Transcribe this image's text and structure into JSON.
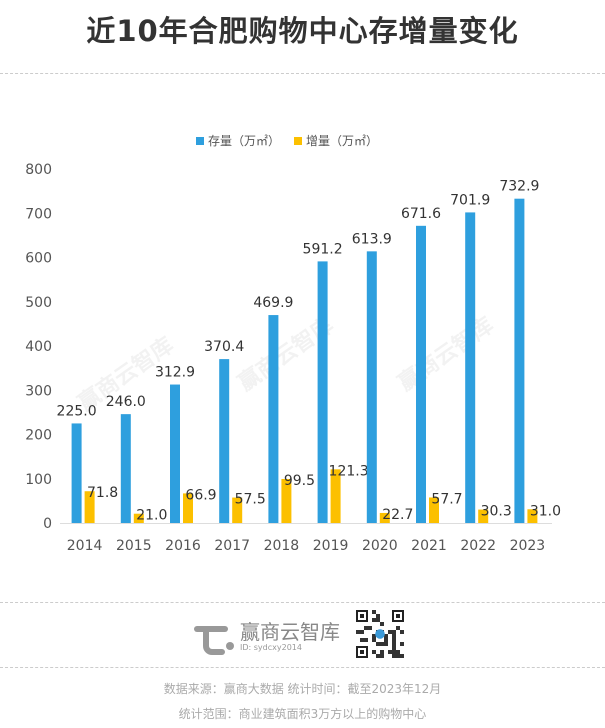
{
  "title": "近10年合肥购物中心存增量变化",
  "chart_data": {
    "type": "bar",
    "title": "近10年合肥购物中心存增量变化",
    "categories": [
      "2014",
      "2015",
      "2016",
      "2017",
      "2018",
      "2019",
      "2020",
      "2021",
      "2022",
      "2023"
    ],
    "series": [
      {
        "name": "存量（万㎡）",
        "color": "#2e9fde",
        "values": [
          225.0,
          246.0,
          312.9,
          370.4,
          469.9,
          591.2,
          613.9,
          671.6,
          701.9,
          732.9
        ],
        "labels": [
          "225.0",
          "246.0",
          "312.9",
          "370.4",
          "469.9",
          "591.2",
          "613.9",
          "671.6",
          "701.9",
          "732.9"
        ]
      },
      {
        "name": "增量（万㎡）",
        "color": "#fcc000",
        "values": [
          71.8,
          21.0,
          66.9,
          57.5,
          99.5,
          121.3,
          22.7,
          57.7,
          30.3,
          31.0
        ],
        "labels": [
          "71.8",
          "21.0",
          "66.9",
          "57.5",
          "99.5",
          "121.3",
          "22.7",
          "57.7",
          "30.3",
          "31.0"
        ]
      }
    ],
    "yticks": [
      "0",
      "100",
      "200",
      "300",
      "400",
      "500",
      "600",
      "700",
      "800"
    ],
    "ylim": [
      0,
      800
    ],
    "xlabel": "",
    "ylabel": "",
    "grid": false,
    "legend": "top-center"
  },
  "watermark": "赢商云智库",
  "brand": {
    "name": "赢商云智库",
    "id": "ID: sydcxy2014"
  },
  "footer": {
    "source": "数据来源：赢商大数据  统计时间：截至2023年12月",
    "scope": "统计范围：商业建筑面积3万方以上的购物中心"
  }
}
